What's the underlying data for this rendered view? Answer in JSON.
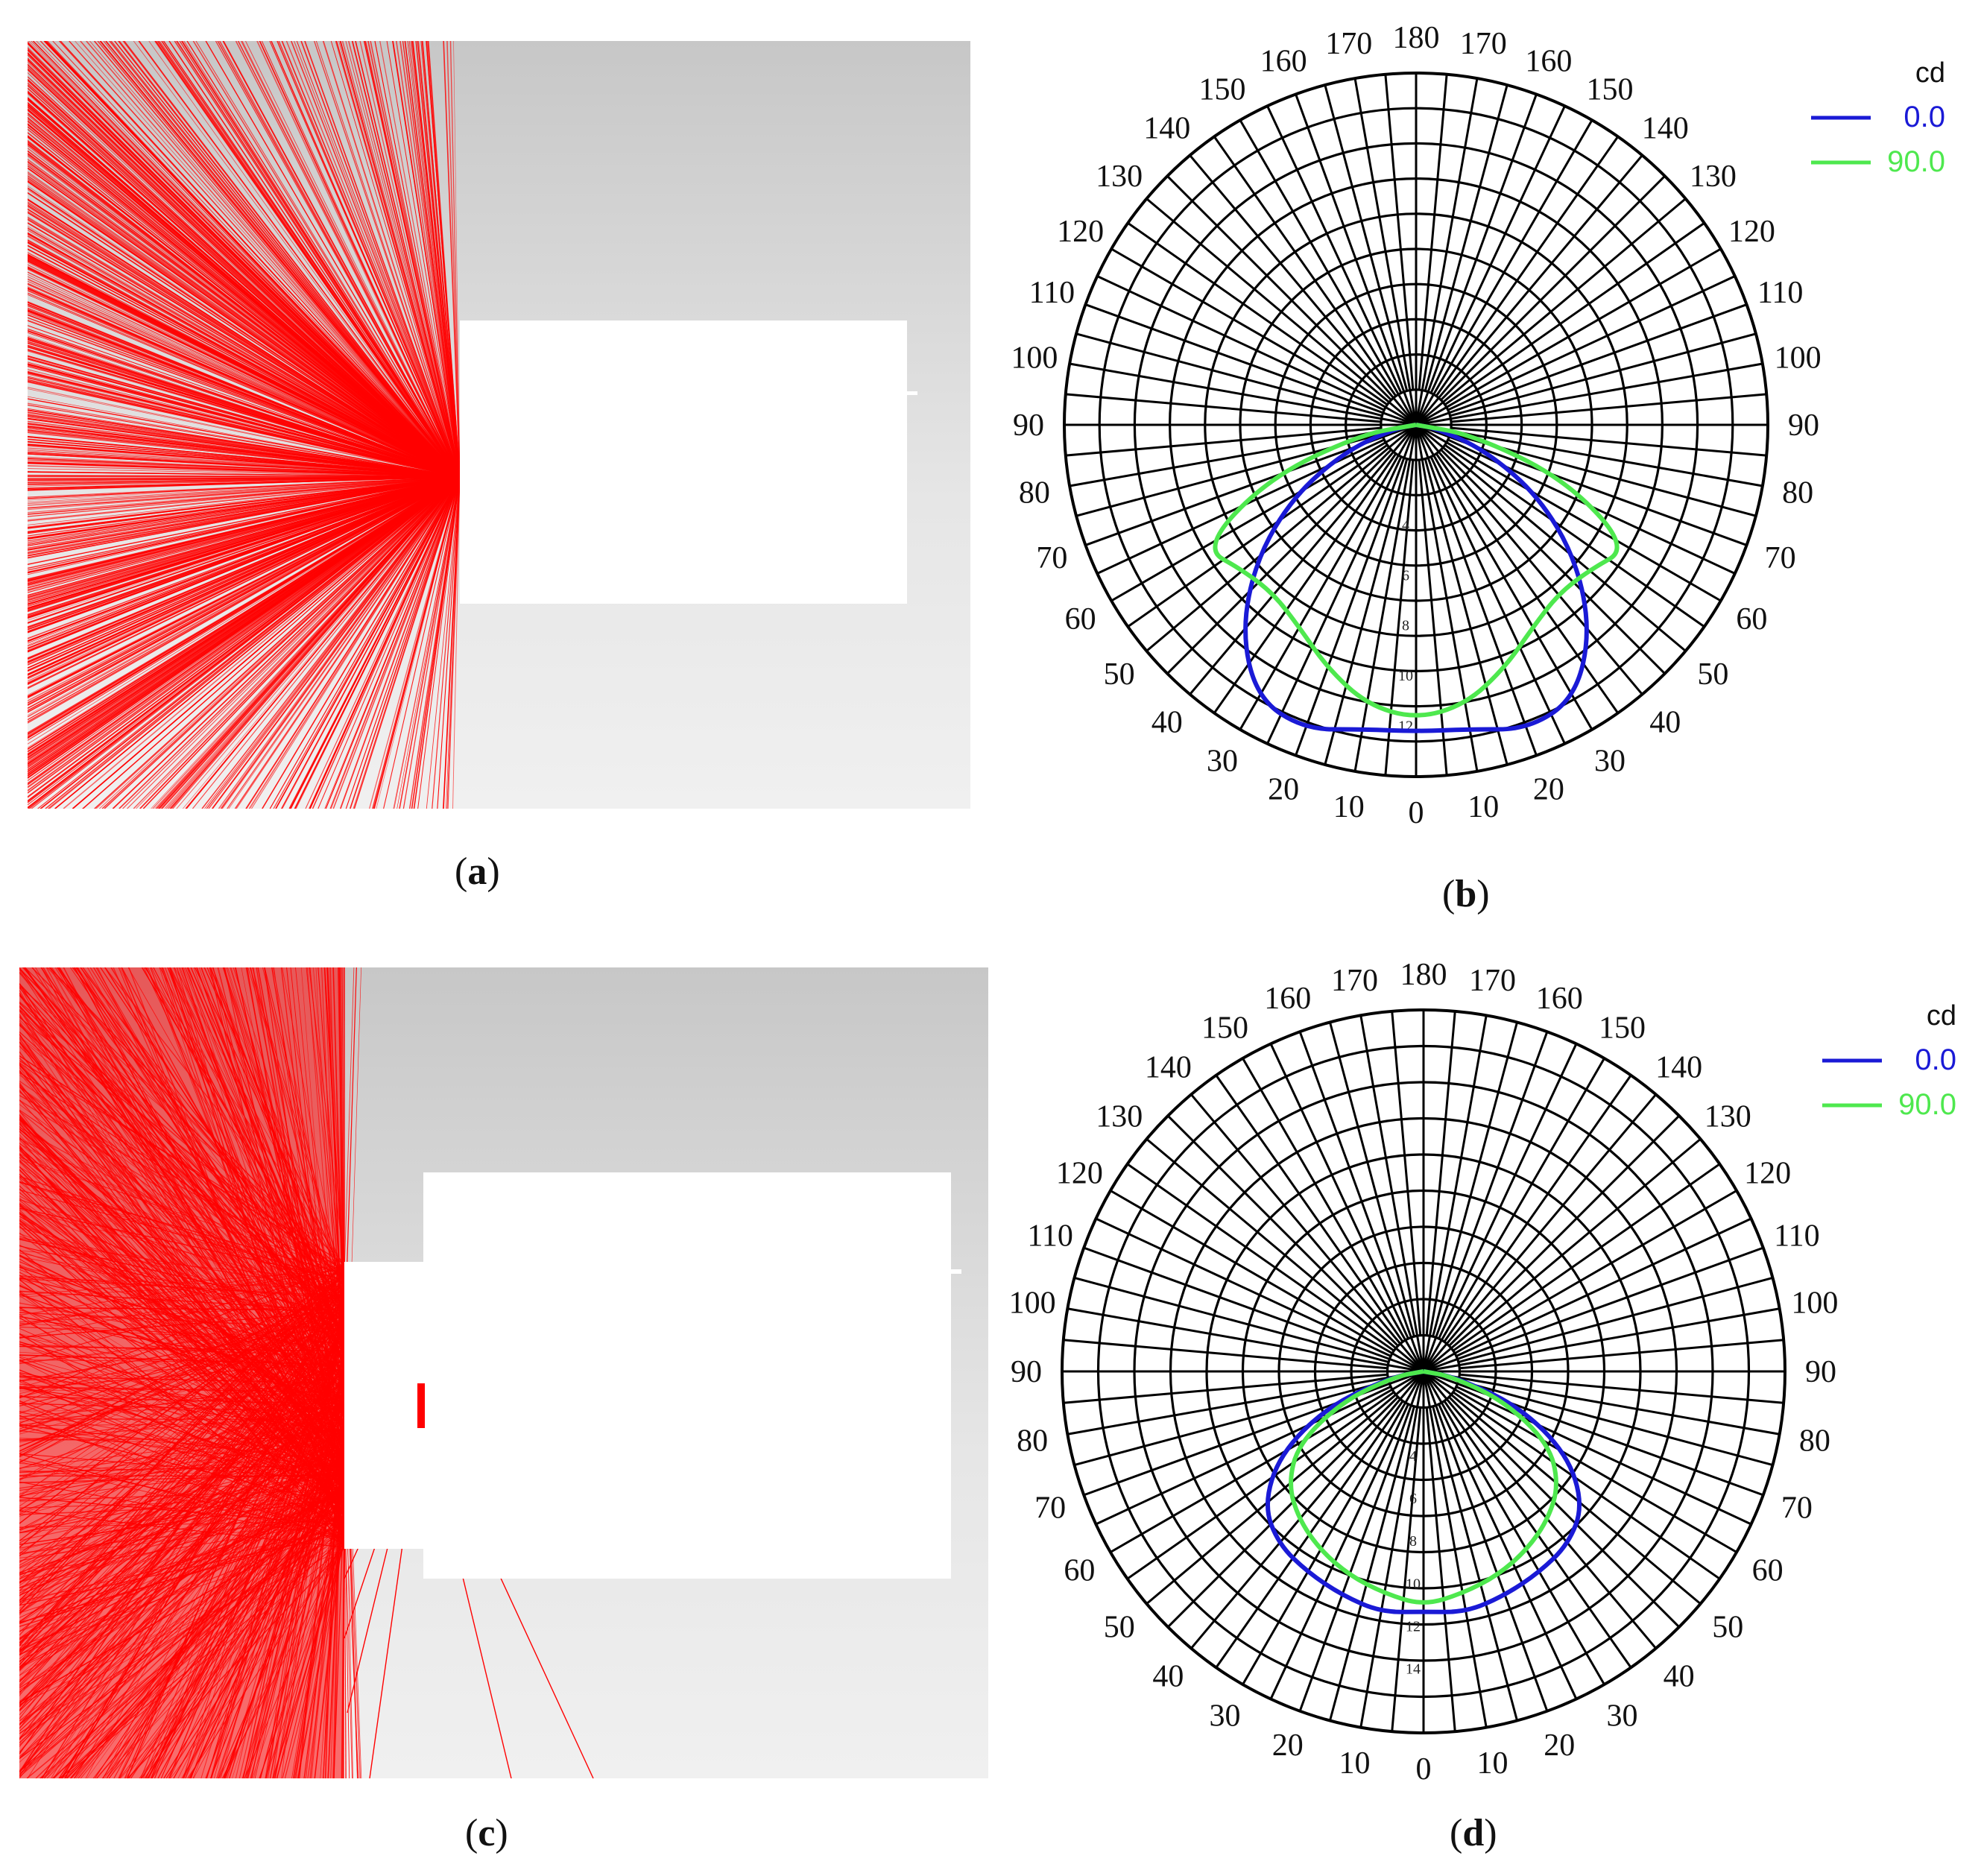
{
  "panels": {
    "a": {
      "caption": "a"
    },
    "b": {
      "caption": "b"
    },
    "c": {
      "caption": "c"
    },
    "d": {
      "caption": "d"
    }
  },
  "colors": {
    "ray": "#ff0000",
    "series_0": "#1a1ad6",
    "series_90": "#4ee84e",
    "grid": "#000000"
  },
  "chart_data": [
    {
      "panel": "b",
      "type": "polar",
      "title": "",
      "unit_label": "cd",
      "angle_labels_left": [
        "0",
        "10",
        "20",
        "30",
        "40",
        "50",
        "60",
        "70",
        "80",
        "90",
        "100",
        "110",
        "120",
        "130",
        "140",
        "150",
        "160",
        "170",
        "180"
      ],
      "angle_labels_right": [
        "10",
        "20",
        "30",
        "40",
        "50",
        "60",
        "70",
        "80",
        "90",
        "100",
        "110",
        "120",
        "130",
        "140",
        "150",
        "160",
        "170"
      ],
      "radial_ticks": [
        "4",
        "6",
        "8",
        "10",
        "12"
      ],
      "rmax": 14,
      "legend_position": "top-right",
      "series": [
        {
          "name": "0.0",
          "color": "#1a1ad6",
          "angles": [
            0,
            10,
            20,
            30,
            40,
            50,
            60,
            70,
            80,
            90
          ],
          "values": [
            12.2,
            12.3,
            12.9,
            12.6,
            10.8,
            8.3,
            5.6,
            2.9,
            0.8,
            0
          ]
        },
        {
          "name": "90.0",
          "color": "#4ee84e",
          "angles": [
            0,
            10,
            20,
            30,
            40,
            50,
            60,
            70,
            80,
            90
          ],
          "values": [
            11.7,
            11.3,
            10.3,
            9.3,
            8.8,
            9.0,
            9.8,
            6.3,
            2.3,
            0
          ]
        }
      ]
    },
    {
      "panel": "d",
      "type": "polar",
      "title": "",
      "unit_label": "cd",
      "angle_labels_left": [
        "0",
        "10",
        "20",
        "30",
        "40",
        "50",
        "60",
        "70",
        "80",
        "90",
        "100",
        "110",
        "120",
        "130",
        "140",
        "150",
        "160",
        "170",
        "180"
      ],
      "angle_labels_right": [
        "10",
        "20",
        "30",
        "40",
        "50",
        "60",
        "70",
        "80",
        "90",
        "100",
        "110",
        "120",
        "130",
        "140",
        "150",
        "160",
        "170"
      ],
      "radial_ticks": [
        "4",
        "6",
        "8",
        "10",
        "12",
        "14"
      ],
      "rmax": 17,
      "legend_position": "top-right",
      "series": [
        {
          "name": "0.0",
          "color": "#1a1ad6",
          "angles": [
            0,
            10,
            20,
            30,
            40,
            50,
            60,
            70,
            80,
            90
          ],
          "values": [
            11.3,
            11.5,
            11.2,
            10.9,
            10.6,
            9.8,
            7.8,
            4.8,
            1.5,
            0
          ]
        },
        {
          "name": "90.0",
          "color": "#4ee84e",
          "angles": [
            0,
            10,
            20,
            30,
            40,
            50,
            60,
            70,
            80,
            90
          ],
          "values": [
            11.0,
            10.6,
            10.2,
            9.7,
            9.1,
            8.3,
            6.8,
            4.0,
            1.3,
            0
          ]
        }
      ]
    }
  ]
}
